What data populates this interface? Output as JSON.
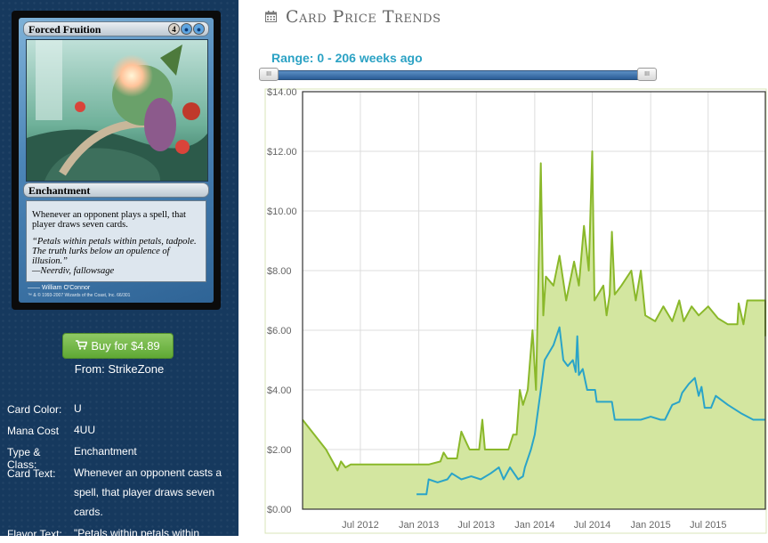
{
  "card": {
    "name": "Forced Fruition",
    "mana": [
      "4",
      "U",
      "U"
    ],
    "type_line": "Enchantment",
    "rules_text": "Whenever an opponent plays a spell, that player draws seven cards.",
    "flavor_text": "“Petals within petals within petals, tadpole. The truth lurks below an opulence of illusion.”",
    "flavor_attribution": "—Neerdiv, fallowsage",
    "illustrator": "William O'Connor",
    "legal": "™ & © 1993-2007 Wizards of the Coast, Inc. 66/301"
  },
  "buy": {
    "label": "Buy for $4.89",
    "from": "From: StrikeZone"
  },
  "info": {
    "rows": [
      {
        "label": "Card Color:",
        "value": "U"
      },
      {
        "label": "Mana Cost",
        "value": "4UU"
      },
      {
        "label": "Type & Class:",
        "value": "Enchantment"
      },
      {
        "label": "Card Text:",
        "value": "Whenever an opponent casts a spell, that player draws seven cards."
      },
      {
        "label": "Flavor Text:",
        "value": "\"Petals within petals within"
      }
    ]
  },
  "panel": {
    "title": "Card Price Trends",
    "range_label": "Range: 0 - 206 weeks ago",
    "slider_handle_glyph": "III"
  },
  "colors": {
    "sidebar_bg": "#16395e",
    "buy_green": "#6cb33f",
    "accent_cyan": "#2ba2c4",
    "green_series": "#8ab82a",
    "green_fill": "#d3e6a0",
    "blue_series": "#2aa4c8"
  },
  "icons": {
    "calendar": "calendar-icon",
    "cart": "shopping-cart-icon"
  },
  "chart_data": {
    "type": "line",
    "title": "",
    "xlabel": "",
    "ylabel": "",
    "x_tick_labels": [
      "Jul 2012",
      "Jan 2013",
      "Jul 2013",
      "Jan 2014",
      "Jul 2014",
      "Jan 2015",
      "Jul 2015"
    ],
    "x_ticks": [
      "2012-07-01",
      "2013-01-01",
      "2013-07-01",
      "2014-01-01",
      "2014-07-01",
      "2015-01-01",
      "2015-07-01"
    ],
    "xlim": [
      "2012-01-01",
      "2015-12-28"
    ],
    "ylim": [
      0,
      14
    ],
    "y_tick_labels": [
      "$0.00",
      "$2.00",
      "$4.00",
      "$6.00",
      "$8.00",
      "$10.00",
      "$12.00",
      "$14.00"
    ],
    "y_ticks": [
      0,
      2,
      4,
      6,
      8,
      10,
      12,
      14
    ],
    "grid": true,
    "series": [
      {
        "fill": true,
        "points": [
          [
            "2012-01-01",
            3.0
          ],
          [
            "2012-03-15",
            2.0
          ],
          [
            "2012-04-20",
            1.3
          ],
          [
            "2012-05-01",
            1.6
          ],
          [
            "2012-05-15",
            1.4
          ],
          [
            "2012-06-01",
            1.5
          ],
          [
            "2012-09-01",
            1.5
          ],
          [
            "2012-12-01",
            1.5
          ],
          [
            "2013-02-01",
            1.5
          ],
          [
            "2013-03-10",
            1.6
          ],
          [
            "2013-03-20",
            1.9
          ],
          [
            "2013-04-01",
            1.7
          ],
          [
            "2013-05-01",
            1.7
          ],
          [
            "2013-05-15",
            2.6
          ],
          [
            "2013-06-01",
            2.2
          ],
          [
            "2013-06-10",
            2.0
          ],
          [
            "2013-07-10",
            2.0
          ],
          [
            "2013-07-20",
            3.0
          ],
          [
            "2013-07-28",
            2.0
          ],
          [
            "2013-10-10",
            2.0
          ],
          [
            "2013-10-25",
            2.5
          ],
          [
            "2013-11-05",
            2.5
          ],
          [
            "2013-11-15",
            4.0
          ],
          [
            "2013-11-25",
            3.5
          ],
          [
            "2013-12-10",
            4.0
          ],
          [
            "2013-12-25",
            6.0
          ],
          [
            "2014-01-05",
            4.0
          ],
          [
            "2014-01-20",
            11.6
          ],
          [
            "2014-01-28",
            6.5
          ],
          [
            "2014-02-05",
            7.8
          ],
          [
            "2014-03-01",
            7.5
          ],
          [
            "2014-03-20",
            8.5
          ],
          [
            "2014-04-10",
            7.0
          ],
          [
            "2014-05-05",
            8.3
          ],
          [
            "2014-05-20",
            7.5
          ],
          [
            "2014-06-05",
            9.5
          ],
          [
            "2014-06-20",
            8.0
          ],
          [
            "2014-07-01",
            12.0
          ],
          [
            "2014-07-08",
            7.0
          ],
          [
            "2014-08-05",
            7.5
          ],
          [
            "2014-08-15",
            6.5
          ],
          [
            "2014-08-25",
            7.2
          ],
          [
            "2014-09-01",
            9.3
          ],
          [
            "2014-09-10",
            7.2
          ],
          [
            "2014-10-01",
            7.5
          ],
          [
            "2014-11-01",
            8.0
          ],
          [
            "2014-11-15",
            7.0
          ],
          [
            "2014-12-01",
            8.0
          ],
          [
            "2014-12-15",
            6.5
          ],
          [
            "2015-01-15",
            6.3
          ],
          [
            "2015-02-10",
            6.8
          ],
          [
            "2015-03-10",
            6.3
          ],
          [
            "2015-04-01",
            7.0
          ],
          [
            "2015-04-15",
            6.3
          ],
          [
            "2015-05-10",
            6.8
          ],
          [
            "2015-06-01",
            6.5
          ],
          [
            "2015-07-01",
            6.8
          ],
          [
            "2015-08-01",
            6.4
          ],
          [
            "2015-09-01",
            6.2
          ],
          [
            "2015-10-01",
            6.2
          ],
          [
            "2015-10-05",
            6.9
          ],
          [
            "2015-10-20",
            6.2
          ],
          [
            "2015-11-01",
            7.0
          ],
          [
            "2015-12-28",
            7.0
          ],
          [
            "2015-12-28",
            5.8
          ]
        ]
      },
      {
        "fill": false,
        "points": [
          [
            "2012-12-25",
            0.5
          ],
          [
            "2013-01-25",
            0.5
          ],
          [
            "2013-02-01",
            1.0
          ],
          [
            "2013-03-01",
            0.9
          ],
          [
            "2013-04-01",
            1.0
          ],
          [
            "2013-04-15",
            1.2
          ],
          [
            "2013-05-15",
            1.0
          ],
          [
            "2013-06-15",
            1.1
          ],
          [
            "2013-07-15",
            1.0
          ],
          [
            "2013-08-15",
            1.2
          ],
          [
            "2013-09-10",
            1.4
          ],
          [
            "2013-09-25",
            1.0
          ],
          [
            "2013-10-15",
            1.4
          ],
          [
            "2013-11-10",
            1.0
          ],
          [
            "2013-11-25",
            1.1
          ],
          [
            "2013-12-01",
            1.4
          ],
          [
            "2013-12-20",
            2.0
          ],
          [
            "2014-01-01",
            2.5
          ],
          [
            "2014-01-20",
            4.0
          ],
          [
            "2014-02-01",
            5.0
          ],
          [
            "2014-03-01",
            5.5
          ],
          [
            "2014-03-20",
            6.1
          ],
          [
            "2014-04-01",
            5.0
          ],
          [
            "2014-04-15",
            4.8
          ],
          [
            "2014-05-01",
            5.0
          ],
          [
            "2014-05-10",
            4.6
          ],
          [
            "2014-05-15",
            5.8
          ],
          [
            "2014-05-20",
            4.5
          ],
          [
            "2014-06-01",
            4.7
          ],
          [
            "2014-06-15",
            4.0
          ],
          [
            "2014-07-10",
            4.0
          ],
          [
            "2014-07-15",
            3.6
          ],
          [
            "2014-09-01",
            3.6
          ],
          [
            "2014-09-10",
            3.0
          ],
          [
            "2014-12-01",
            3.0
          ],
          [
            "2015-01-01",
            3.1
          ],
          [
            "2015-02-01",
            3.0
          ],
          [
            "2015-02-15",
            3.0
          ],
          [
            "2015-03-10",
            3.5
          ],
          [
            "2015-04-01",
            3.6
          ],
          [
            "2015-04-10",
            3.9
          ],
          [
            "2015-05-01",
            4.2
          ],
          [
            "2015-05-20",
            4.4
          ],
          [
            "2015-06-01",
            3.8
          ],
          [
            "2015-06-10",
            4.1
          ],
          [
            "2015-06-20",
            3.4
          ],
          [
            "2015-07-10",
            3.4
          ],
          [
            "2015-07-25",
            3.8
          ],
          [
            "2015-09-01",
            3.5
          ],
          [
            "2015-10-15",
            3.2
          ],
          [
            "2015-11-20",
            3.0
          ],
          [
            "2015-12-28",
            3.0
          ]
        ]
      }
    ]
  }
}
